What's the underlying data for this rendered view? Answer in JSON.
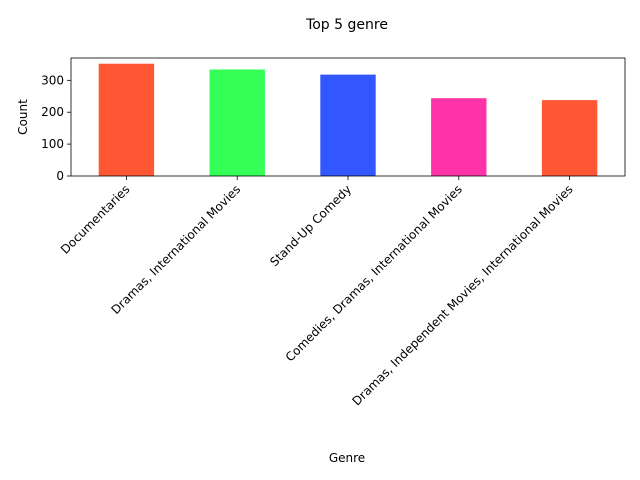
{
  "chart_data": {
    "type": "bar",
    "title": "Top 5 genre",
    "xlabel": "Genre",
    "ylabel": "Count",
    "categories": [
      "Documentaries",
      "Dramas, International Movies",
      "Stand-Up Comedy",
      "Comedies, Dramas, International Movies",
      "Dramas, Independent Movies, International Movies"
    ],
    "values": [
      352,
      334,
      318,
      244,
      238
    ],
    "colors": [
      "#ff5733",
      "#33ff57",
      "#3357ff",
      "#ff33a8",
      "#ff5733"
    ],
    "ylim": [
      0,
      370
    ],
    "yticks": [
      0,
      100,
      200,
      300
    ],
    "grid": false,
    "legend": "none"
  }
}
